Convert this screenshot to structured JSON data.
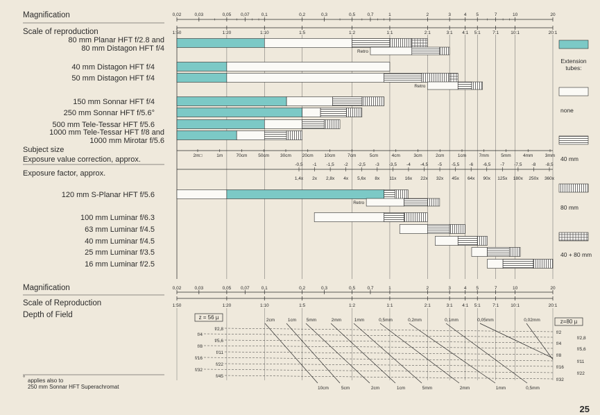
{
  "page_number": "25",
  "colors": {
    "paper": "#efe9dc",
    "ink": "#2a2a2a",
    "teal": "#7cc9c6",
    "white_bar": "#fbfaf6"
  },
  "chart_data": [
    {
      "type": "bar",
      "subtype": "horizontal-range",
      "axes": {
        "magnification": {
          "label": "Magnification",
          "scale": "log",
          "range": [
            0.02,
            20
          ],
          "ticks": [
            "0,02",
            "0,03",
            "0,05",
            "0,07",
            "0,1",
            "0,2",
            "0,3",
            "0,5",
            "0,7",
            "1",
            "2",
            "3",
            "4",
            "5",
            "7",
            "10",
            "20"
          ]
        },
        "reproduction": {
          "label": "Scale of reproduction",
          "ticks": [
            "1:50",
            "1:20",
            "1:10",
            "1:5",
            "1:2",
            "1:1",
            "2:1",
            "3:1",
            "4:1",
            "5:1",
            "7:1",
            "10:1",
            "20:1"
          ]
        },
        "subject_size": {
          "label": "Subject size",
          "ticks": [
            "2m□",
            "1m",
            "70cm",
            "50cm",
            "30cm",
            "20cm",
            "10cm",
            "7cm",
            "5cm",
            "4cm",
            "3cm",
            "2cm",
            "1cm",
            "7mm",
            "5mm",
            "4mm",
            "3mm"
          ]
        },
        "exposure_correction": {
          "label": "Exposure value correction, approx.",
          "ticks": [
            "-0,5",
            "-1",
            "-1,5",
            "-2",
            "-2,5",
            "-3",
            "-3,5",
            "-4",
            "-4,5",
            "-5",
            "-5,5",
            "-6",
            "-6,5",
            "-7",
            "-7,5",
            "-8",
            "-8,5"
          ]
        },
        "exposure_factor": {
          "label": "Exposure factor, approx.",
          "ticks": [
            "1,4x",
            "2x",
            "2,8x",
            "4x",
            "5,6x",
            "8x",
            "11x",
            "16x",
            "22x",
            "32x",
            "45x",
            "64x",
            "90x",
            "125x",
            "180x",
            "250x",
            "360x"
          ]
        }
      },
      "legend": {
        "title": "Extension tubes:",
        "items": [
          "none",
          "40 mm",
          "80 mm",
          "40 + 80 mm"
        ]
      },
      "retro_label": "Retro",
      "lenses": [
        {
          "label_lines": [
            "80 mm Planar HFT f/2.8 and",
            "80 mm Distagon HFT f/4"
          ],
          "segments": [
            [
              0.02,
              0.1,
              "teal"
            ],
            [
              0.1,
              0.5,
              "none"
            ],
            [
              0.5,
              1.0,
              "40"
            ],
            [
              1.0,
              1.5,
              "80"
            ],
            [
              1.5,
              2.0,
              "40+80"
            ]
          ],
          "retro": [
            [
              0.7,
              1.5,
              "none"
            ],
            [
              1.5,
              2.5,
              "40"
            ],
            [
              2.5,
              3.0,
              "80"
            ]
          ]
        },
        {
          "label_lines": [
            "40 mm Distagon HFT f/4"
          ],
          "segments": [
            [
              0.02,
              0.05,
              "teal"
            ],
            [
              0.05,
              1.0,
              "none"
            ]
          ]
        },
        {
          "label_lines": [
            "50 mm Distagon HFT f/4"
          ],
          "segments": [
            [
              0.02,
              0.05,
              "teal"
            ],
            [
              0.05,
              0.9,
              "none"
            ],
            [
              0.9,
              1.8,
              "40"
            ],
            [
              1.8,
              3.0,
              "80"
            ],
            [
              3.0,
              3.5,
              "40+80"
            ]
          ],
          "retro": [
            [
              2.0,
              3.5,
              "none"
            ],
            [
              3.5,
              4.5,
              "40"
            ],
            [
              4.5,
              5.5,
              "80"
            ]
          ]
        },
        {
          "label_lines": [
            "150 mm Sonnar HFT f/4"
          ],
          "segments": [
            [
              0.02,
              0.15,
              "teal"
            ],
            [
              0.15,
              0.35,
              "none"
            ],
            [
              0.35,
              0.6,
              "40"
            ],
            [
              0.6,
              0.9,
              "80"
            ]
          ]
        },
        {
          "label_lines": [
            "250 mm Sonnar HFT f/5.6°"
          ],
          "segments": [
            [
              0.02,
              0.2,
              "teal"
            ],
            [
              0.2,
              0.28,
              "none"
            ],
            [
              0.28,
              0.45,
              "40"
            ],
            [
              0.45,
              0.6,
              "80"
            ]
          ]
        },
        {
          "label_lines": [
            "500 mm Tele-Tessar HFT f/5.6"
          ],
          "segments": [
            [
              0.02,
              0.1,
              "teal"
            ],
            [
              0.1,
              0.2,
              "none"
            ],
            [
              0.2,
              0.3,
              "40"
            ],
            [
              0.3,
              0.4,
              "80"
            ]
          ]
        },
        {
          "label_lines": [
            "1000 mm Tele-Tessar HFT f/8 and",
            "1000 mm Mirotar f/5.6"
          ],
          "segments": [
            [
              0.02,
              0.06,
              "teal"
            ],
            [
              0.06,
              0.1,
              "none"
            ],
            [
              0.1,
              0.15,
              "40"
            ],
            [
              0.15,
              0.2,
              "80"
            ]
          ]
        },
        {
          "label_lines": [
            "120 mm S-Planar HFT f/5.6"
          ],
          "segments": [
            [
              0.02,
              0.05,
              "none"
            ],
            [
              0.05,
              0.9,
              "teal"
            ],
            [
              0.9,
              1.1,
              "40"
            ],
            [
              1.1,
              1.4,
              "80"
            ]
          ],
          "retro": [
            [
              0.65,
              1.3,
              "none"
            ],
            [
              1.3,
              2.0,
              "40"
            ],
            [
              2.0,
              2.5,
              "80"
            ]
          ]
        },
        {
          "label_lines": [
            "100 mm Luminar f/6.3"
          ],
          "segments": [
            [
              0.25,
              0.9,
              "none"
            ],
            [
              0.9,
              1.3,
              "40"
            ],
            [
              1.3,
              2.0,
              "80"
            ]
          ]
        },
        {
          "label_lines": [
            "63 mm Luminar f/4.5"
          ],
          "segments": [
            [
              1.2,
              2.0,
              "none"
            ],
            [
              2.0,
              3.0,
              "40"
            ],
            [
              3.0,
              4.0,
              "80"
            ]
          ]
        },
        {
          "label_lines": [
            "40 mm Luminar f/4.5"
          ],
          "segments": [
            [
              2.3,
              3.5,
              "none"
            ],
            [
              3.5,
              5.0,
              "40"
            ],
            [
              5.0,
              6.0,
              "80"
            ]
          ]
        },
        {
          "label_lines": [
            "25 mm Luminar f/3.5"
          ],
          "segments": [
            [
              4.5,
              6.0,
              "none"
            ],
            [
              6.0,
              9.0,
              "40"
            ],
            [
              9.0,
              11.0,
              "80"
            ]
          ]
        },
        {
          "label_lines": [
            "16 mm Luminar f/2.5"
          ],
          "segments": [
            [
              6.0,
              8.0,
              "none"
            ],
            [
              8.0,
              14.0,
              "40"
            ],
            [
              14.0,
              20.0,
              "80"
            ]
          ]
        }
      ]
    },
    {
      "type": "diagram",
      "subtype": "depth-of-field nomogram",
      "axes": {
        "magnification": {
          "label": "Magnification",
          "ticks": [
            "0,02",
            "0,03",
            "0,05",
            "0,07",
            "0,1",
            "0,2",
            "0,3",
            "0,5",
            "0,7",
            "1",
            "2",
            "3",
            "4",
            "5",
            "7",
            "10",
            "20"
          ]
        },
        "reproduction": {
          "label": "Scale of Reproduction",
          "ticks": [
            "1:50",
            "1:20",
            "1:10",
            "1:5",
            "1:2",
            "1:1",
            "2:1",
            "3:1",
            "4:1",
            "5:1",
            "7:1",
            "10:1",
            "20:1"
          ]
        }
      },
      "depth_label": "Depth of Field",
      "z_left": "z = 56 µ",
      "z_right": "z=80 µ",
      "apertures_left": [
        "f/2,8",
        "f/4",
        "f/5,6",
        "f/8",
        "f/11",
        "f/16",
        "f/22",
        "f/32",
        "f/45"
      ],
      "apertures_right": [
        "f/2",
        "f/2,8",
        "f/4",
        "f/5,6",
        "f/8",
        "f/11",
        "f/16",
        "f/22",
        "f/32"
      ],
      "depth_top": [
        "2cm",
        "1cm",
        "5mm",
        "2mm",
        "1mm",
        "0,5mm",
        "0,2mm",
        "0,1mm",
        "0,05mm",
        "0,02mm"
      ],
      "depth_bottom": [
        "10cm",
        "5cm",
        "2cm",
        "1cm",
        "5mm",
        "2mm",
        "1mm",
        "0,5mm"
      ]
    }
  ],
  "footnote": {
    "mark": "°",
    "line1": "applies also to",
    "line2": "250 mm Sonnar HFT Superachromat"
  }
}
